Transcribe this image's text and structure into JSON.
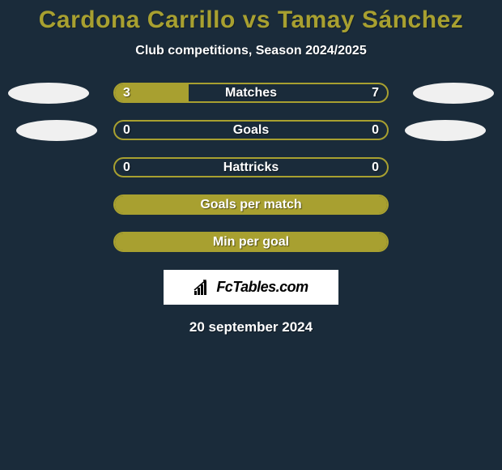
{
  "title": "Cardona Carrillo vs Tamay Sánchez",
  "subtitle": "Club competitions, Season 2024/2025",
  "date": "20 september 2024",
  "logo_text": "FcTables.com",
  "colors": {
    "background": "#1a2b3a",
    "title": "#a8a030",
    "text": "#ffffff",
    "border": "#a8a030",
    "fill": "#a8a030",
    "avatar": "#f0f0f0"
  },
  "bars": [
    {
      "label": "Matches",
      "left_val": "3",
      "right_val": "7",
      "left_pct": 27,
      "right_pct": 0,
      "avatar_left": true,
      "avatar_right": true,
      "avatar_shift": false
    },
    {
      "label": "Goals",
      "left_val": "0",
      "right_val": "0",
      "left_pct": 0,
      "right_pct": 0,
      "avatar_left": true,
      "avatar_right": true,
      "avatar_shift": true
    },
    {
      "label": "Hattricks",
      "left_val": "0",
      "right_val": "0",
      "left_pct": 0,
      "right_pct": 0,
      "avatar_left": false,
      "avatar_right": false,
      "avatar_shift": false
    },
    {
      "label": "Goals per match",
      "left_val": "",
      "right_val": "",
      "left_pct": 100,
      "right_pct": 0,
      "avatar_left": false,
      "avatar_right": false,
      "avatar_shift": false
    },
    {
      "label": "Min per goal",
      "left_val": "",
      "right_val": "",
      "left_pct": 100,
      "right_pct": 0,
      "avatar_left": false,
      "avatar_right": false,
      "avatar_shift": false
    }
  ]
}
